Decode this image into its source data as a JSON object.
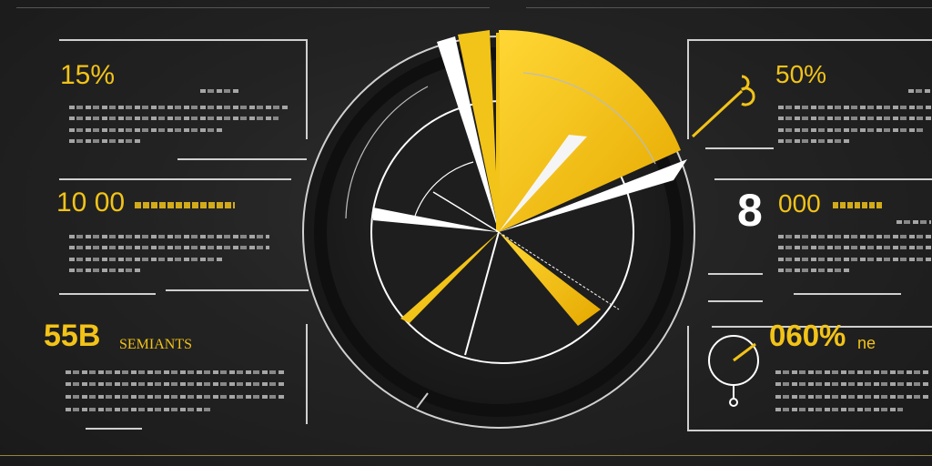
{
  "colors": {
    "accent": "#f2c318",
    "background": "#232323",
    "text": "#ffffff",
    "lines": "#cfcfcf"
  },
  "left_panel": {
    "stat1": "15%",
    "stat2": "10 00",
    "stat3_number": "55B",
    "stat3_label": "SEMIANTS"
  },
  "right_panel": {
    "stat1": "50%",
    "stat2_big": "8",
    "stat2_number": "000",
    "stat3": "060%",
    "stat3_suffix": "ne"
  },
  "icons": [
    "pie-chart-icon",
    "hook-icon",
    "stopwatch-icon"
  ]
}
